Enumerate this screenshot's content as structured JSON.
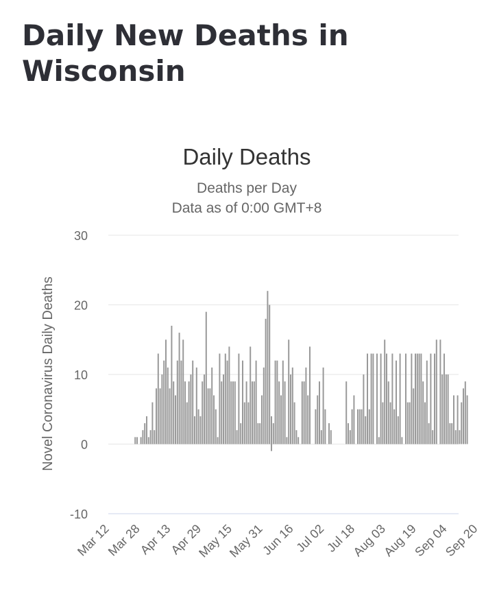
{
  "page": {
    "title": "Daily New Deaths in Wisconsin"
  },
  "chart_data": {
    "type": "bar",
    "title": "Daily Deaths",
    "subtitle": "Deaths per Day",
    "subtitle2": "Data as of 0:00 GMT+8",
    "ylabel": "Novel Coronavirus Daily Deaths",
    "xlabel": "",
    "ylim": [
      -10,
      30
    ],
    "y_ticks": [
      30,
      20,
      10,
      0,
      -10
    ],
    "x_ticks": [
      "Mar 12",
      "Mar 28",
      "Apr 13",
      "Apr 29",
      "May 15",
      "May 31",
      "Jun 16",
      "Jul 02",
      "Jul 18",
      "Aug 03",
      "Aug 19",
      "Sep 04",
      "Sep 20"
    ],
    "start_date": "2020-03-12",
    "grid": true,
    "color": "#999999",
    "values": [
      0,
      0,
      0,
      0,
      0,
      0,
      0,
      0,
      0,
      0,
      0,
      0,
      0,
      0,
      1,
      1,
      0,
      1,
      2,
      3,
      4,
      1,
      2,
      6,
      2,
      8,
      13,
      8,
      10,
      12,
      15,
      11,
      8,
      17,
      9,
      7,
      12,
      16,
      12,
      15,
      9,
      6,
      9,
      10,
      12,
      4,
      11,
      5,
      4,
      9,
      10,
      19,
      8,
      8,
      11,
      7,
      5,
      1,
      13,
      9,
      10,
      13,
      12,
      14,
      9,
      9,
      9,
      2,
      13,
      3,
      12,
      6,
      9,
      6,
      14,
      9,
      9,
      12,
      3,
      3,
      7,
      11,
      18,
      22,
      20,
      4,
      3,
      12,
      12,
      9,
      7,
      12,
      9,
      1,
      15,
      10,
      11,
      6,
      2,
      1,
      0,
      9,
      9,
      11,
      7,
      14,
      0,
      0,
      5,
      7,
      9,
      2,
      11,
      5,
      0,
      3,
      2,
      0,
      0,
      0,
      0,
      0,
      0,
      0,
      9,
      3,
      2,
      5,
      7,
      0,
      5,
      5,
      5,
      10,
      4,
      13,
      5,
      13,
      13,
      0,
      13,
      1,
      13,
      6,
      15,
      13,
      9,
      6,
      13,
      5,
      12,
      4,
      13,
      1,
      0,
      13,
      6,
      6,
      13,
      8,
      13,
      13,
      13,
      13,
      9,
      6,
      12,
      3,
      13,
      2,
      13,
      15,
      0,
      15,
      10,
      13,
      10,
      10,
      3,
      3,
      7,
      2,
      7,
      2,
      6,
      8,
      9,
      7
    ],
    "negative_values": [
      {
        "date": "2020-06-05",
        "value": -1
      }
    ]
  }
}
